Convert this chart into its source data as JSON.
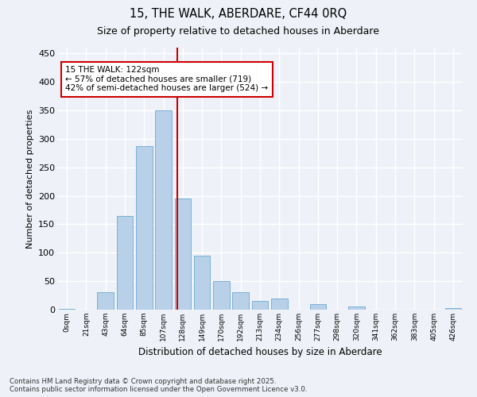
{
  "title1": "15, THE WALK, ABERDARE, CF44 0RQ",
  "title2": "Size of property relative to detached houses in Aberdare",
  "xlabel": "Distribution of detached houses by size in Aberdare",
  "ylabel": "Number of detached properties",
  "bar_labels": [
    "0sqm",
    "21sqm",
    "43sqm",
    "64sqm",
    "85sqm",
    "107sqm",
    "128sqm",
    "149sqm",
    "170sqm",
    "192sqm",
    "213sqm",
    "234sqm",
    "256sqm",
    "277sqm",
    "298sqm",
    "320sqm",
    "341sqm",
    "362sqm",
    "383sqm",
    "405sqm",
    "426sqm"
  ],
  "bar_values": [
    2,
    0,
    30,
    165,
    287,
    350,
    195,
    95,
    50,
    30,
    15,
    19,
    0,
    10,
    0,
    5,
    0,
    0,
    0,
    0,
    3
  ],
  "bar_color": "#b8d0e8",
  "bar_edgecolor": "#6aaad4",
  "property_label": "15 THE WALK: 122sqm",
  "annotation_line1": "← 57% of detached houses are smaller (719)",
  "annotation_line2": "42% of semi-detached houses are larger (524) →",
  "vline_color": "#cc0000",
  "ylim": [
    0,
    460
  ],
  "yticks": [
    0,
    50,
    100,
    150,
    200,
    250,
    300,
    350,
    400,
    450
  ],
  "bg_color": "#eef2f8",
  "grid_color": "#ffffff",
  "footer1": "Contains HM Land Registry data © Crown copyright and database right 2025.",
  "footer2": "Contains public sector information licensed under the Open Government Licence v3.0."
}
